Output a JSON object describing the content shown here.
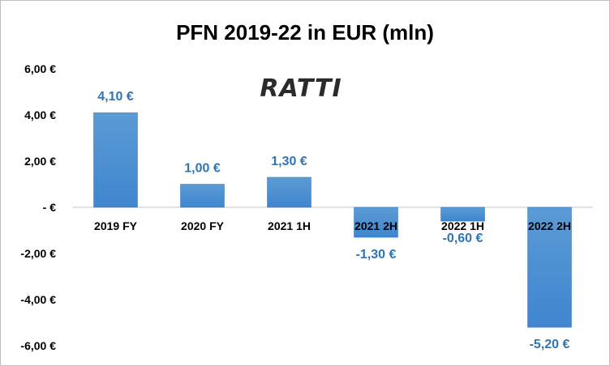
{
  "chart_data": {
    "type": "bar",
    "title": "PFN 2019-22 in EUR (mln)",
    "categories": [
      "2019 FY",
      "2020 FY",
      "2021 1H",
      "2021 2H",
      "2022 1H",
      "2022 2H"
    ],
    "values": [
      4.1,
      1.0,
      1.3,
      -1.3,
      -0.6,
      -5.2
    ],
    "data_labels": [
      "4,10 €",
      "1,00 €",
      "1,30 €",
      "-1,30 €",
      "-0,60 €",
      "-5,20 €"
    ],
    "ylim": [
      -6,
      6
    ],
    "yticks": [
      6,
      4,
      2,
      0,
      -2,
      -4,
      -6
    ],
    "ytick_labels": [
      "6,00 €",
      "4,00 €",
      "2,00 €",
      "-   €",
      "-2,00 €",
      "-4,00 €",
      "-6,00 €"
    ],
    "xlabel": "",
    "ylabel": "",
    "grid": false,
    "legend": "none",
    "colors": {
      "bar_top": "#5b9bd5",
      "bar_bottom": "#3f86cf",
      "bar_edge": "#2e75b6",
      "data_label": "#2e75b6",
      "axis_line": "#d9d9d9"
    }
  },
  "logo": {
    "text": "RATTI",
    "color": "#2b2b2b"
  }
}
